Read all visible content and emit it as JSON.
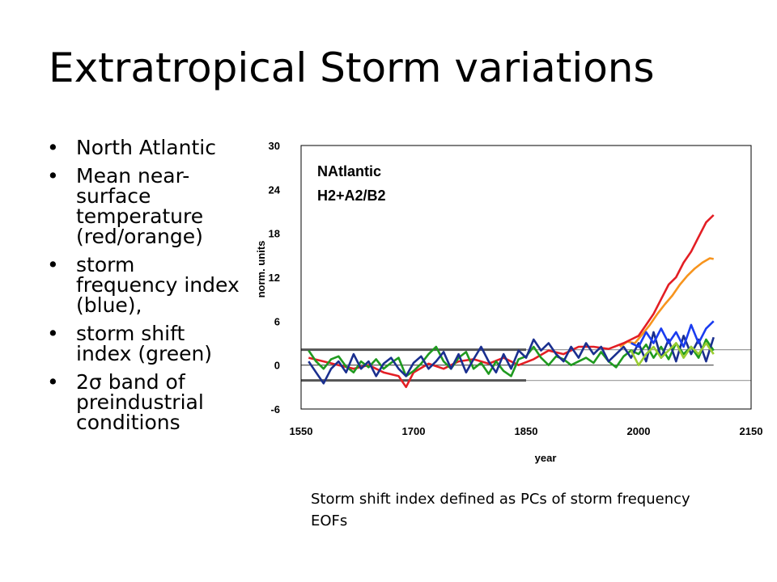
{
  "slide": {
    "title": "Extratropical Storm variations",
    "bullets": [
      "North Atlantic",
      "Mean near-surface temperature (red/orange)",
      "storm frequency index (blue),",
      "storm shift index (green)",
      "2σ band of preindustrial conditions"
    ],
    "caption": "Storm shift index defined as PCs of  storm frequency EOFs"
  },
  "chart_data": {
    "type": "line",
    "title_lines": [
      "NAtlantic",
      "H2+A2/B2"
    ],
    "xlabel": "year",
    "ylabel": "norm. units",
    "xlim": [
      1550,
      2150
    ],
    "ylim": [
      -6,
      30
    ],
    "xticks": [
      1550,
      1700,
      1850,
      2000,
      2150
    ],
    "yticks": [
      -6,
      0,
      6,
      12,
      18,
      24,
      30
    ],
    "reference_lines": [
      {
        "y": 0,
        "x_range": [
          1550,
          2100
        ],
        "color": "#444444"
      },
      {
        "y": 2.1,
        "x_range": [
          1550,
          1850
        ],
        "color": "#555555",
        "weight": "thick"
      },
      {
        "y": -2.1,
        "x_range": [
          1550,
          1850
        ],
        "color": "#555555",
        "weight": "thick"
      },
      {
        "y": 2.1,
        "x_range": [
          1850,
          2150
        ],
        "color": "#999999"
      },
      {
        "y": -2.1,
        "x_range": [
          1850,
          2150
        ],
        "color": "#999999"
      }
    ],
    "series": [
      {
        "color": "#f7941d",
        "x": [
          1975,
          1985,
          1995,
          2005,
          2015,
          2025,
          2035,
          2045,
          2055,
          2065,
          2075,
          2085,
          2095,
          2100
        ],
        "y": [
          2.5,
          3.2,
          3.0,
          4.2,
          5.5,
          7.0,
          8.3,
          9.5,
          11.0,
          12.2,
          13.2,
          14.0,
          14.6,
          14.5
        ]
      },
      {
        "color": "#e31e24",
        "x": [
          1560,
          1580,
          1600,
          1620,
          1640,
          1660,
          1680,
          1690,
          1700,
          1720,
          1740,
          1760,
          1780,
          1800,
          1820,
          1840,
          1860,
          1880,
          1900,
          1920,
          1940,
          1960,
          1980,
          1990,
          2000,
          2010,
          2020,
          2030,
          2040,
          2050,
          2060,
          2070,
          2080,
          2090,
          2100
        ],
        "y": [
          1.0,
          0.5,
          0.0,
          -0.5,
          0.0,
          -1.0,
          -1.5,
          -3.0,
          -1.0,
          0.2,
          -0.5,
          0.5,
          0.8,
          0.2,
          1.0,
          0.0,
          0.8,
          2.0,
          1.5,
          2.5,
          2.5,
          2.2,
          3.0,
          3.5,
          4.0,
          5.5,
          7.0,
          9.0,
          11.0,
          12.0,
          14.0,
          15.5,
          17.5,
          19.5,
          20.5
        ]
      },
      {
        "color": "#1f9a1f",
        "x": [
          1560,
          1570,
          1580,
          1590,
          1600,
          1610,
          1620,
          1630,
          1640,
          1650,
          1660,
          1670,
          1680,
          1690,
          1700,
          1710,
          1720,
          1730,
          1740,
          1750,
          1760,
          1770,
          1780,
          1790,
          1800,
          1810,
          1820,
          1830,
          1840,
          1850,
          1860,
          1870,
          1880,
          1890,
          1900,
          1910,
          1920,
          1930,
          1940,
          1950,
          1960,
          1970,
          1980,
          1990,
          2000,
          2010,
          2020,
          2030,
          2040,
          2050,
          2060,
          2070,
          2080,
          2090,
          2100
        ],
        "y": [
          2.0,
          0.5,
          -0.5,
          0.8,
          1.2,
          -0.2,
          -1.0,
          0.5,
          -0.3,
          0.8,
          -0.5,
          0.3,
          1.0,
          -1.5,
          -0.8,
          0.2,
          1.5,
          2.5,
          0.5,
          -0.5,
          1.0,
          1.8,
          -0.5,
          0.3,
          -1.2,
          0.5,
          -0.8,
          -1.5,
          0.8,
          1.2,
          2.5,
          1.0,
          0.0,
          1.2,
          0.8,
          0.0,
          0.5,
          1.0,
          0.3,
          1.8,
          0.5,
          -0.3,
          1.2,
          2.0,
          1.5,
          2.8,
          1.0,
          2.5,
          0.8,
          3.0,
          1.5,
          2.5,
          1.0,
          3.5,
          2.0
        ]
      },
      {
        "color": "#1a2f8f",
        "x": [
          1560,
          1570,
          1580,
          1590,
          1600,
          1610,
          1620,
          1630,
          1640,
          1650,
          1660,
          1670,
          1680,
          1690,
          1700,
          1710,
          1720,
          1730,
          1740,
          1750,
          1760,
          1770,
          1780,
          1790,
          1800,
          1810,
          1820,
          1830,
          1840,
          1850,
          1860,
          1870,
          1880,
          1890,
          1900,
          1910,
          1920,
          1930,
          1940,
          1950,
          1960,
          1970,
          1980,
          1990,
          2000,
          2010,
          2020,
          2030,
          2040,
          2050,
          2060,
          2070,
          2080,
          2090,
          2100
        ],
        "y": [
          0.5,
          -1.0,
          -2.5,
          -0.5,
          0.5,
          -1.0,
          1.5,
          -0.5,
          0.5,
          -1.5,
          0.2,
          1.0,
          -0.5,
          -1.5,
          0.3,
          1.2,
          -0.5,
          0.5,
          1.8,
          -0.5,
          1.5,
          -1.0,
          0.8,
          2.5,
          0.5,
          -1.0,
          1.5,
          -0.5,
          2.0,
          1.0,
          3.5,
          2.0,
          3.0,
          1.5,
          0.5,
          2.5,
          1.0,
          3.0,
          1.5,
          2.5,
          0.5,
          1.5,
          2.5,
          1.0,
          3.0,
          0.5,
          4.5,
          1.0,
          3.5,
          0.5,
          4.0,
          1.5,
          3.5,
          0.5,
          3.8
        ]
      },
      {
        "color": "#1a3cf0",
        "x": [
          1990,
          2000,
          2010,
          2020,
          2030,
          2040,
          2050,
          2060,
          2070,
          2080,
          2090,
          2100
        ],
        "y": [
          3.0,
          2.5,
          4.5,
          3.0,
          5.0,
          3.0,
          4.5,
          2.5,
          5.5,
          3.0,
          5.0,
          6.0
        ]
      },
      {
        "color": "#9acd32",
        "x": [
          1990,
          2000,
          2010,
          2020,
          2030,
          2040,
          2050,
          2060,
          2070,
          2080,
          2090,
          2100
        ],
        "y": [
          2.0,
          0.0,
          1.5,
          2.5,
          1.0,
          2.0,
          3.0,
          1.0,
          2.5,
          1.5,
          3.0,
          1.5
        ]
      }
    ]
  }
}
